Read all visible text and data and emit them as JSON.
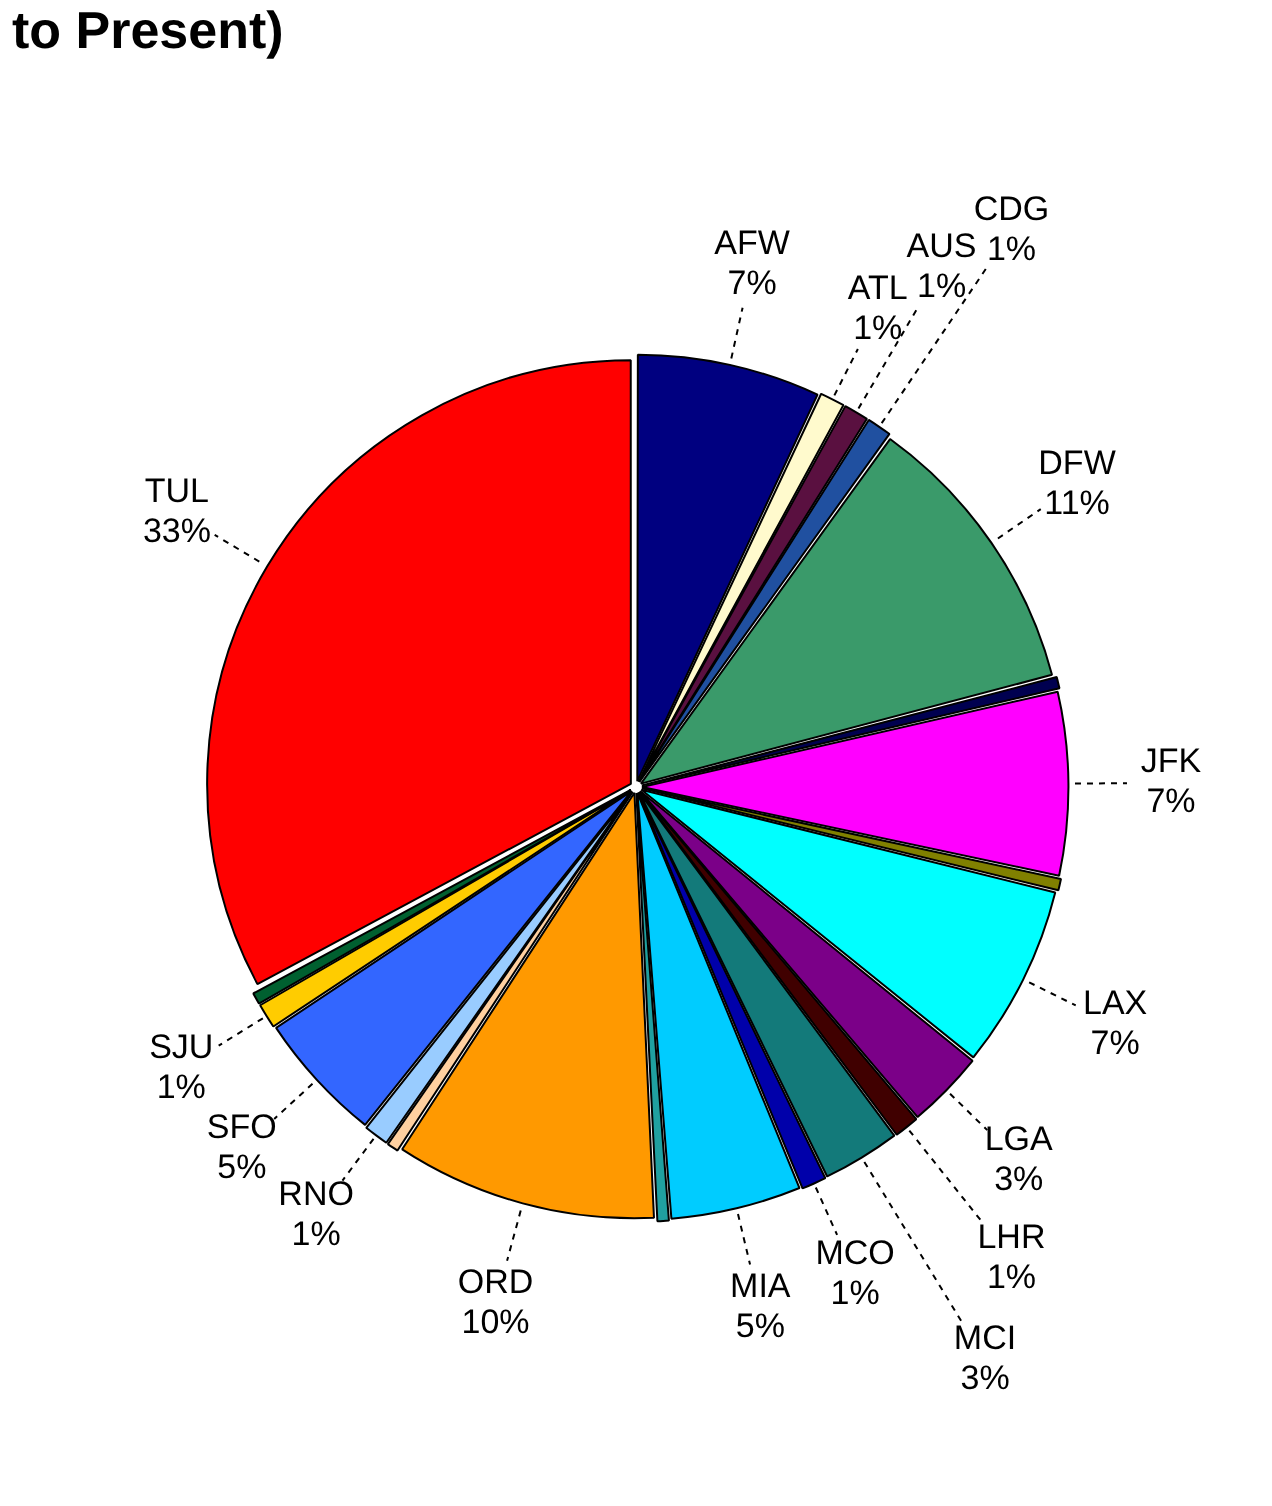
{
  "chart_data": {
    "type": "pie",
    "title": "to Present)",
    "categories": [
      "AFW",
      "ATL",
      "AUS",
      "CDG",
      "DFW",
      null,
      "JFK",
      null,
      "LAX",
      "LGA",
      "LHR",
      "MCI",
      "MCO",
      "MIA",
      null,
      "ORD",
      null,
      "RNO",
      "SFO",
      "SJU",
      null,
      "TUL"
    ],
    "values": [
      7,
      1,
      1,
      1,
      11,
      0.5,
      7,
      0.5,
      7,
      3,
      1,
      3,
      1,
      5,
      0.5,
      10,
      0.5,
      1,
      5,
      1,
      0.5,
      33
    ],
    "value_labels": [
      "7%",
      "1%",
      "1%",
      "1%",
      "11%",
      null,
      "7%",
      null,
      "7%",
      "3%",
      "1%",
      "3%",
      "1%",
      "5%",
      null,
      "10%",
      null,
      "1%",
      "5%",
      "1%",
      null,
      "33%"
    ],
    "colors": [
      "#000080",
      "#fffacd",
      "#5a1040",
      "#2050a0",
      "#3a9a6a",
      "#000050",
      "#ff00ff",
      "#808000",
      "#00ffff",
      "#7b0088",
      "#400000",
      "#137a7a",
      "#0000aa",
      "#00ccff",
      "#20a0a0",
      "#ff9900",
      "#ffd0a0",
      "#99ccff",
      "#3366ff",
      "#ffcc00",
      "#006030",
      "#ff0000"
    ],
    "legend": false
  }
}
